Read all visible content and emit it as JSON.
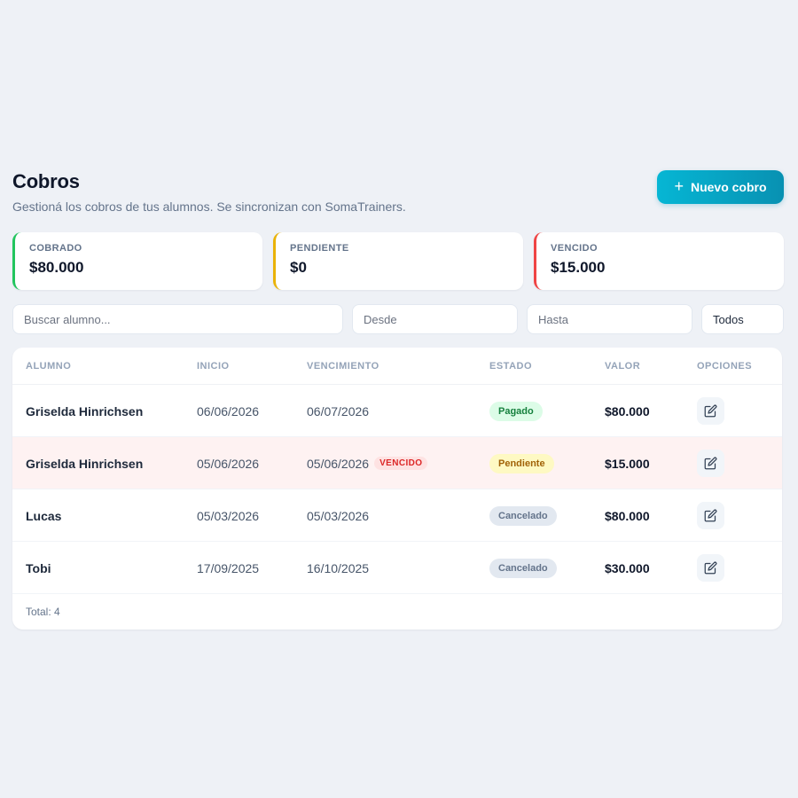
{
  "header": {
    "title": "Cobros",
    "subtitle": "Gestioná los cobros de tus alumnos. Se sincronizan con SomaTrainers.",
    "new_button_icon": "plus-icon",
    "new_button_label": "Nuevo cobro"
  },
  "summary": {
    "collected": {
      "label": "COBRADO",
      "value": "$80.000",
      "color": "#22c55e"
    },
    "pending": {
      "label": "PENDIENTE",
      "value": "$0",
      "color": "#eab308"
    },
    "overdue": {
      "label": "VENCIDO",
      "value": "$15.000",
      "color": "#ef4444"
    }
  },
  "filters": {
    "search_placeholder": "Buscar alumno...",
    "from_placeholder": "Desde",
    "to_placeholder": "Hasta",
    "status_selected": "Todos"
  },
  "table": {
    "headers": {
      "student": "ALUMNO",
      "start": "INICIO",
      "due": "VENCIMIENTO",
      "status": "ESTADO",
      "value": "VALOR",
      "options": "OPCIONES"
    },
    "rows": [
      {
        "student": "Griselda Hinrichsen",
        "start": "06/06/2026",
        "due": "06/07/2026",
        "due_tag": "",
        "status": "Pagado",
        "value": "$80.000",
        "action_icon": "edit-icon"
      },
      {
        "student": "Griselda Hinrichsen",
        "start": "05/06/2026",
        "due": "05/06/2026",
        "due_tag": "VENCIDO",
        "status": "Pendiente",
        "value": "$15.000",
        "action_icon": "edit-icon"
      },
      {
        "student": "Lucas",
        "start": "05/03/2026",
        "due": "05/03/2026",
        "due_tag": "",
        "status": "Cancelado",
        "value": "$80.000",
        "action_icon": "edit-icon"
      },
      {
        "student": "Tobi",
        "start": "17/09/2025",
        "due": "16/10/2025",
        "due_tag": "",
        "status": "Cancelado",
        "value": "$30.000",
        "action_icon": "edit-icon"
      }
    ],
    "total": "Total: 4"
  },
  "colors": {
    "background": "#eef1f6",
    "accent": "#06b6d4",
    "paid": "#15803d",
    "pending": "#a16207",
    "cancelled": "#64748b",
    "overdue_row": "#fef2f2"
  }
}
